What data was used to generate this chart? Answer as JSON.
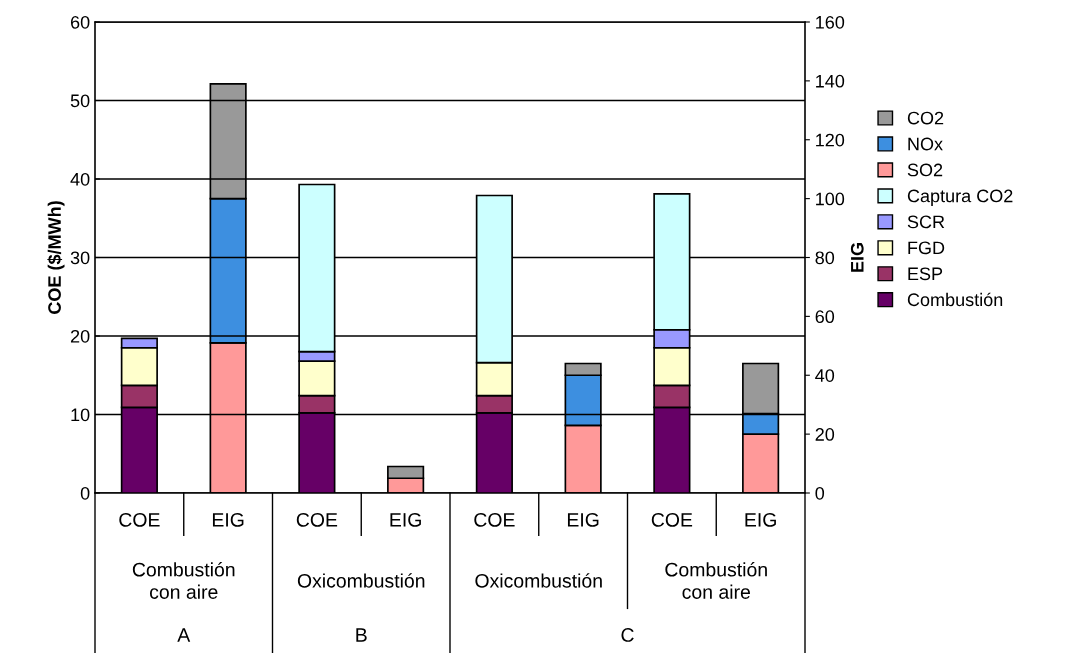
{
  "chart_data": {
    "type": "bar",
    "stacked": true,
    "ylabel": "COE ($/MWh)",
    "y2label": "EIG",
    "categories": [
      "COE",
      "EIG",
      "COE",
      "EIG",
      "COE",
      "EIG",
      "COE",
      "EIG"
    ],
    "series": [
      {
        "name": "Combustión",
        "color": "#660066",
        "values": [
          10.9,
          null,
          10.2,
          null,
          10.2,
          null,
          10.9,
          null
        ]
      },
      {
        "name": "ESP",
        "color": "#993366",
        "values": [
          2.8,
          null,
          2.2,
          null,
          2.2,
          null,
          2.8,
          null
        ]
      },
      {
        "name": "FGD",
        "color": "#ffffcc",
        "values": [
          4.8,
          null,
          4.4,
          null,
          4.2,
          null,
          4.8,
          null
        ]
      },
      {
        "name": "SCR",
        "color": "#9999ff",
        "values": [
          1.2,
          null,
          1.2,
          null,
          null,
          null,
          2.3,
          null
        ]
      },
      {
        "name": "Captura CO2",
        "color": "#ccffff",
        "values": [
          null,
          null,
          21.3,
          null,
          21.3,
          null,
          17.3,
          null
        ]
      },
      {
        "name": "SO2",
        "color": "#ff9999",
        "axis": "y2",
        "values": [
          null,
          51,
          null,
          5,
          null,
          23,
          null,
          20
        ]
      },
      {
        "name": "NOx",
        "color": "#3d8fe0",
        "axis": "y2",
        "values": [
          null,
          49,
          null,
          null,
          null,
          17,
          null,
          7
        ]
      },
      {
        "name": "CO2",
        "color": "#999999",
        "axis": "y2",
        "values": [
          null,
          39,
          null,
          4,
          null,
          4,
          null,
          17
        ]
      }
    ],
    "ylim": [
      0,
      60
    ],
    "yticks": [
      0,
      10,
      20,
      30,
      40,
      50,
      60
    ],
    "y2lim": [
      0,
      160
    ],
    "y2ticks": [
      0,
      20,
      40,
      60,
      80,
      100,
      120,
      140,
      160
    ],
    "grid": "y",
    "legend": "right",
    "annotations": [
      "Combustión\ncon aire",
      "Oxicombustión",
      "Oxicombustión",
      "Combustión\ncon aire",
      "A",
      "B",
      "C"
    ]
  }
}
